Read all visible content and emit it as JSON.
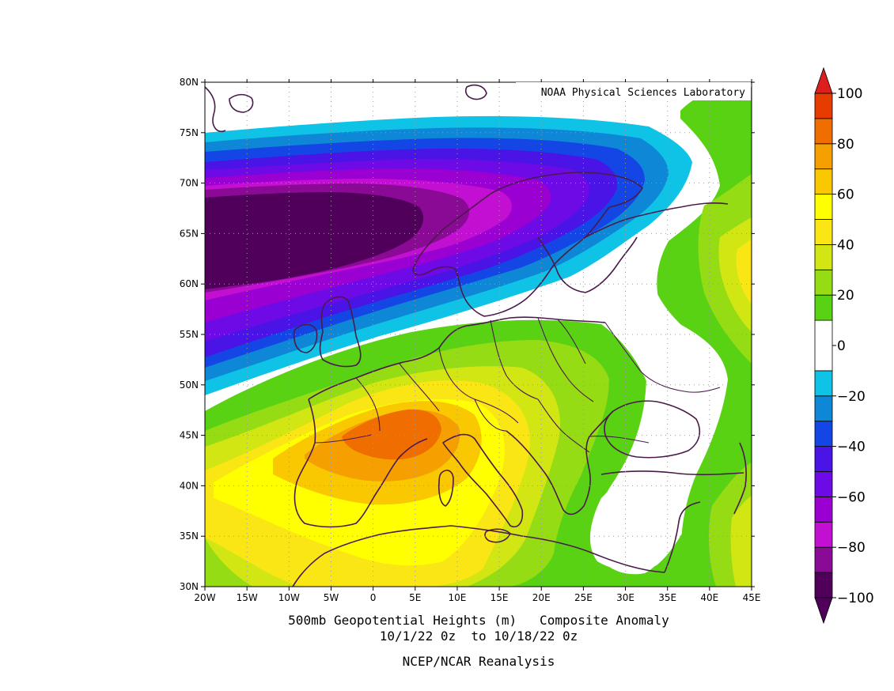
{
  "credit": "NOAA Physical Sciences Laboratory",
  "caption": {
    "line1": "500mb Geopotential Heights (m)   Composite Anomaly",
    "line2": "10/1/22 0z  to 10/18/22 0z",
    "line3": "NCEP/NCAR Reanalysis"
  },
  "map": {
    "lon_range": [
      -20,
      45
    ],
    "lat_range": [
      30,
      80
    ],
    "lon_ticks": [
      {
        "value": -20,
        "label": "20W"
      },
      {
        "value": -15,
        "label": "15W"
      },
      {
        "value": -10,
        "label": "10W"
      },
      {
        "value": -5,
        "label": "5W"
      },
      {
        "value": 0,
        "label": "0"
      },
      {
        "value": 5,
        "label": "5E"
      },
      {
        "value": 10,
        "label": "10E"
      },
      {
        "value": 15,
        "label": "15E"
      },
      {
        "value": 20,
        "label": "20E"
      },
      {
        "value": 25,
        "label": "25E"
      },
      {
        "value": 30,
        "label": "30E"
      },
      {
        "value": 35,
        "label": "35E"
      },
      {
        "value": 40,
        "label": "40E"
      },
      {
        "value": 45,
        "label": "45E"
      }
    ],
    "lat_ticks": [
      {
        "value": 30,
        "label": "30N"
      },
      {
        "value": 35,
        "label": "35N"
      },
      {
        "value": 40,
        "label": "40N"
      },
      {
        "value": 45,
        "label": "45N"
      },
      {
        "value": 50,
        "label": "50N"
      },
      {
        "value": 55,
        "label": "55N"
      },
      {
        "value": 60,
        "label": "60N"
      },
      {
        "value": 65,
        "label": "65N"
      },
      {
        "value": 70,
        "label": "70N"
      },
      {
        "value": 75,
        "label": "75N"
      },
      {
        "value": 80,
        "label": "80N"
      }
    ],
    "coastline_color": "#4a1a4a"
  },
  "colorbar": {
    "levels": [
      {
        "from": -100,
        "to": -90,
        "color": "#50005a"
      },
      {
        "from": -90,
        "to": -80,
        "color": "#8a0a96"
      },
      {
        "from": -80,
        "to": -70,
        "color": "#c30fd2"
      },
      {
        "from": -70,
        "to": -60,
        "color": "#9b00d2"
      },
      {
        "from": -60,
        "to": -50,
        "color": "#6e0ae6"
      },
      {
        "from": -50,
        "to": -40,
        "color": "#4a14e6"
      },
      {
        "from": -40,
        "to": -30,
        "color": "#1446e6"
      },
      {
        "from": -30,
        "to": -20,
        "color": "#0f87d7"
      },
      {
        "from": -20,
        "to": -10,
        "color": "#0fc3e6"
      },
      {
        "from": -10,
        "to": 10,
        "color": "#ffffff"
      },
      {
        "from": 10,
        "to": 20,
        "color": "#5ad214"
      },
      {
        "from": 20,
        "to": 30,
        "color": "#96dc14"
      },
      {
        "from": 30,
        "to": 40,
        "color": "#d2e614"
      },
      {
        "from": 40,
        "to": 50,
        "color": "#fae614"
      },
      {
        "from": 50,
        "to": 60,
        "color": "#ffff00"
      },
      {
        "from": 60,
        "to": 70,
        "color": "#fac800"
      },
      {
        "from": 70,
        "to": 80,
        "color": "#f5a000"
      },
      {
        "from": 80,
        "to": 90,
        "color": "#f06e00"
      },
      {
        "from": 90,
        "to": 100,
        "color": "#e63c00"
      }
    ],
    "labels": [
      "100",
      "80",
      "60",
      "40",
      "20",
      "0",
      "−20",
      "−40",
      "−60",
      "−80",
      "−100"
    ],
    "under_color": "#50005a",
    "over_color": "#dc1e1e"
  }
}
